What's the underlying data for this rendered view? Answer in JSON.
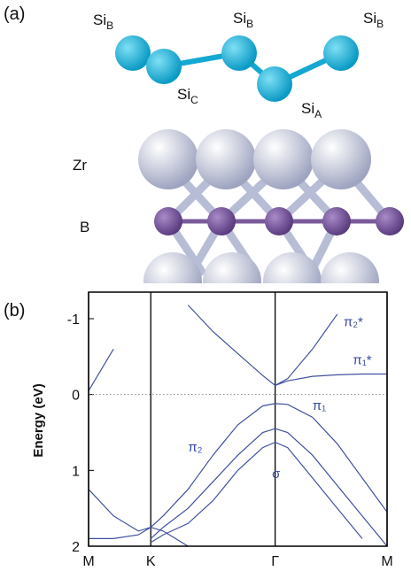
{
  "panel_labels": [
    "(a)",
    "(b)"
  ],
  "structure": {
    "labels": [
      {
        "text": "Si",
        "sub": "B"
      },
      {
        "text": "Si",
        "sub": "B"
      },
      {
        "text": "Si",
        "sub": "B"
      },
      {
        "text": "Si",
        "sub": "C"
      },
      {
        "text": "Si",
        "sub": "A"
      },
      {
        "text": "Zr"
      },
      {
        "text": "B"
      }
    ]
  },
  "chart_data": {
    "type": "line",
    "ylabel": "Energy (eV)",
    "x": [
      0,
      0.4,
      0.8,
      1.0,
      1.2,
      1.6,
      2.0,
      2.4,
      2.8,
      3.0,
      3.2,
      3.6,
      4.0,
      4.4,
      4.8
    ],
    "xlim": [
      0,
      4.8
    ],
    "xticks": [
      {
        "value": 0,
        "label": "M"
      },
      {
        "value": 1.0,
        "label": "K"
      },
      {
        "value": 3.0,
        "label": "Γ"
      },
      {
        "value": 4.8,
        "label": "M"
      }
    ],
    "ylim": [
      -1.35,
      2
    ],
    "yticks": [
      -1,
      0,
      1,
      2
    ],
    "y_inverted": true,
    "x_grid": true,
    "zero_line": true,
    "series": [
      {
        "color": "#4050a0",
        "values": [
          -0.05,
          -0.6,
          null,
          null,
          null,
          null,
          null,
          null,
          null,
          null,
          null,
          null,
          null,
          null,
          null
        ]
      },
      {
        "color": "#4050a0",
        "values": [
          null,
          null,
          null,
          null,
          null,
          -1.18,
          -0.83,
          -0.54,
          -0.25,
          -0.12,
          -0.21,
          -0.6,
          -1.06,
          null,
          null
        ]
      },
      {
        "color": "#4050a0",
        "values": [
          null,
          null,
          null,
          null,
          null,
          null,
          null,
          null,
          null,
          -0.12,
          -0.18,
          -0.24,
          -0.26,
          -0.27,
          -0.27
        ]
      },
      {
        "color": "#4050a0",
        "values": [
          1.9,
          1.9,
          1.85,
          1.75,
          1.6,
          1.25,
          0.8,
          0.4,
          0.15,
          0.12,
          0.13,
          0.3,
          0.65,
          1.1,
          1.55
        ]
      },
      {
        "color": "#4050a0",
        "values": [
          null,
          null,
          null,
          1.9,
          1.75,
          1.5,
          1.15,
          0.8,
          0.5,
          0.45,
          0.5,
          0.8,
          1.2,
          1.6,
          2.0
        ]
      },
      {
        "color": "#4050a0",
        "values": [
          null,
          null,
          null,
          1.95,
          1.85,
          1.7,
          1.4,
          1.0,
          0.7,
          0.63,
          0.7,
          1.1,
          1.5,
          1.9,
          null
        ]
      },
      {
        "color": "#4050a0",
        "values": [
          1.25,
          1.6,
          1.8,
          1.75,
          1.8,
          2.0,
          null,
          null,
          null,
          null,
          null,
          null,
          null,
          null,
          null
        ]
      }
    ],
    "annotations": [
      {
        "text": "π₂*",
        "x": 4.1,
        "y": -0.9
      },
      {
        "text": "π₁*",
        "x": 4.25,
        "y": -0.4
      },
      {
        "text": "π₁",
        "x": 3.6,
        "y": 0.2
      },
      {
        "text": "π₂",
        "x": 1.6,
        "y": 0.75
      },
      {
        "text": "σ",
        "x": 2.95,
        "y": 1.1
      }
    ]
  }
}
